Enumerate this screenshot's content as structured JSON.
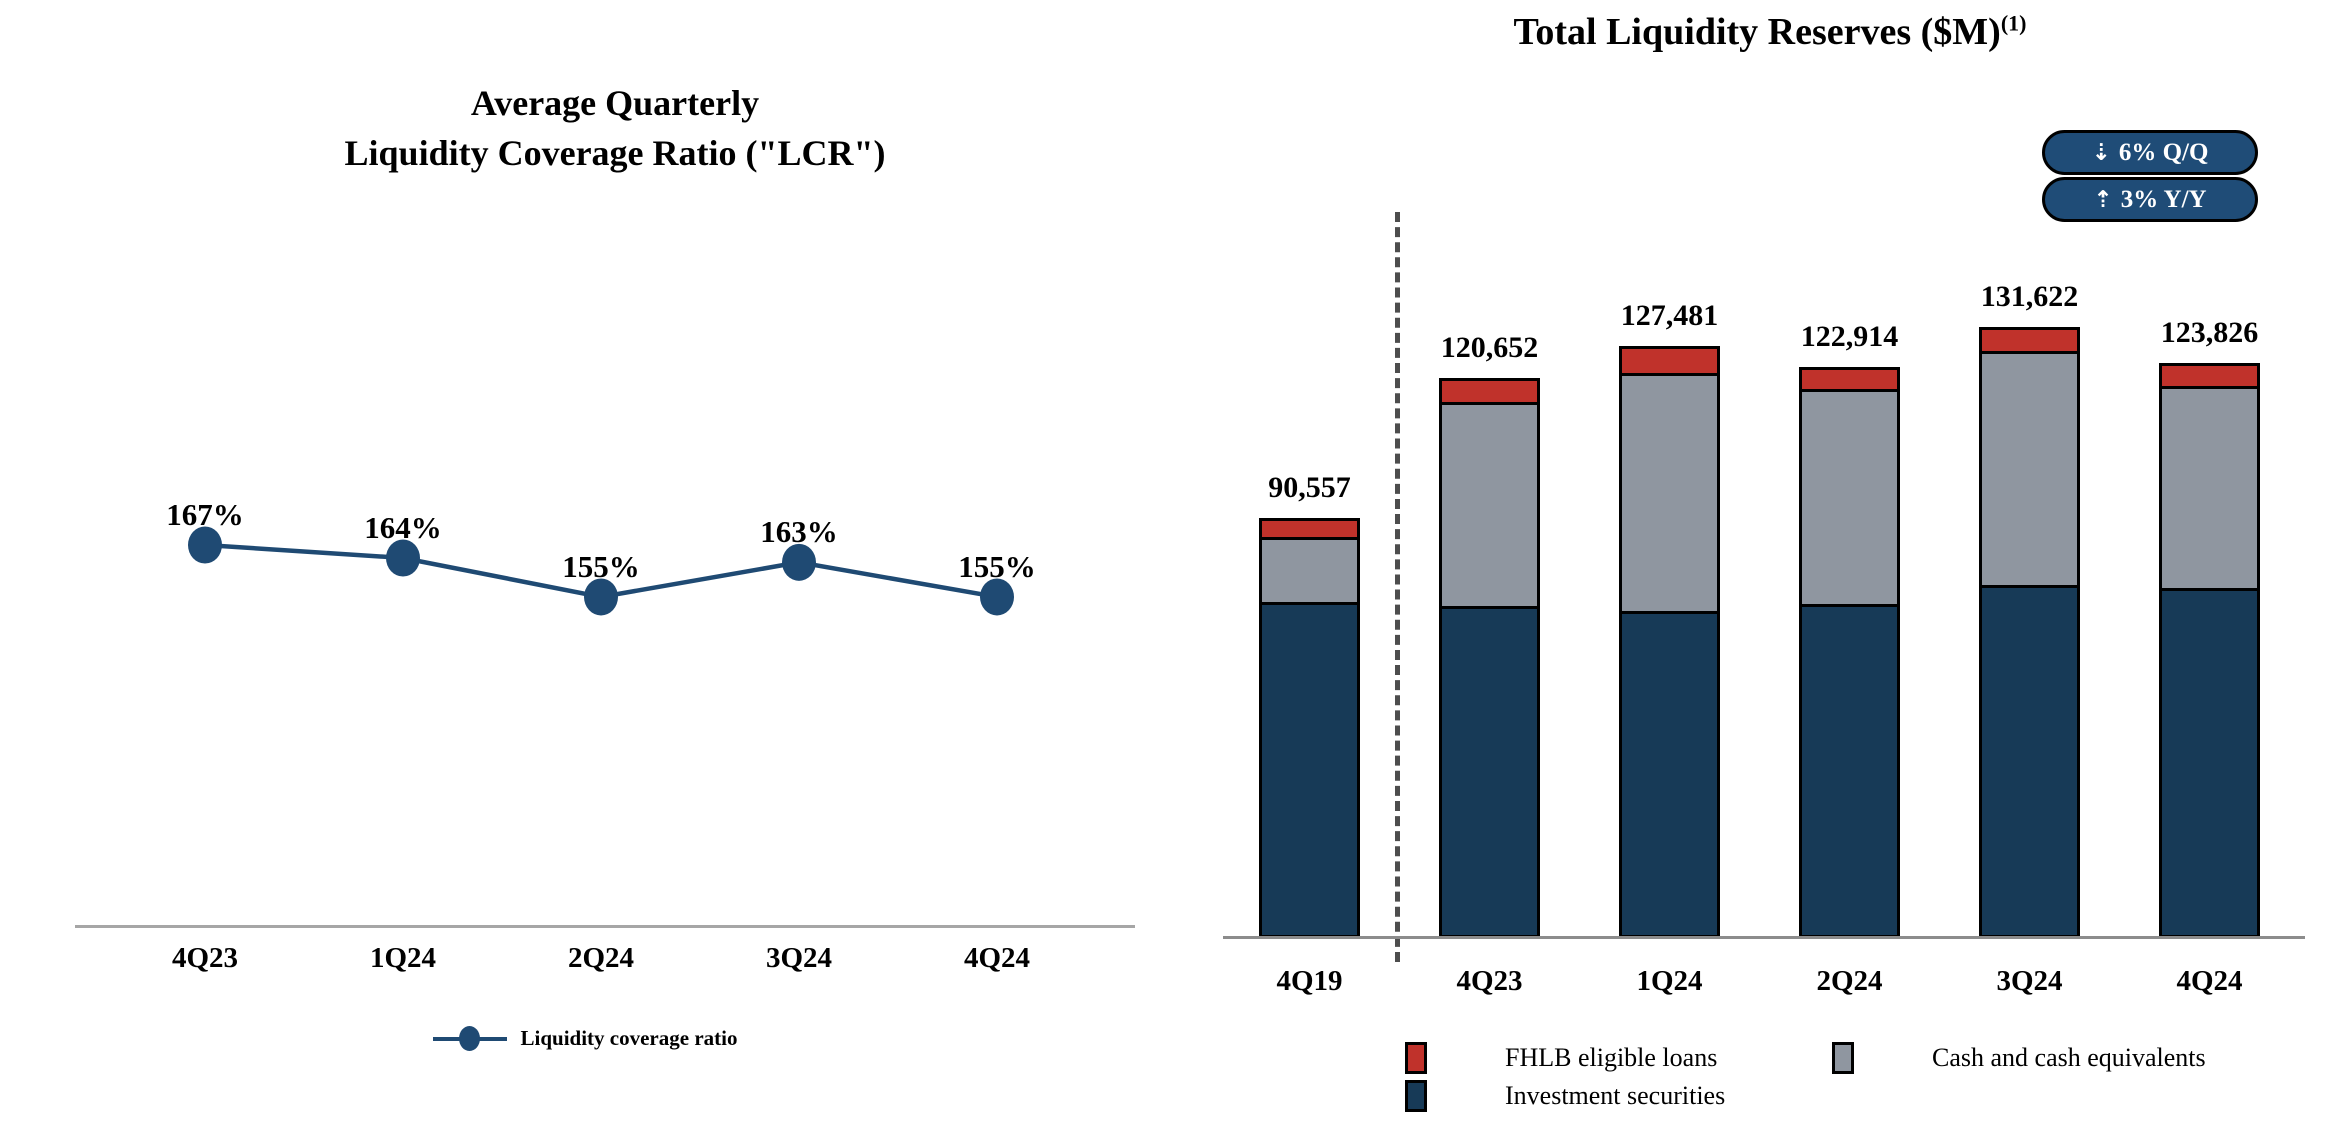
{
  "left_chart": {
    "title_line1": "Average Quarterly",
    "title_line2": "Liquidity Coverage Ratio (\"LCR\")",
    "legend_label": "Liquidity coverage ratio"
  },
  "right_chart": {
    "title": "Total Liquidity Reserves ($M)",
    "title_superscript": "(1)",
    "badges": [
      {
        "arrow": "⇣",
        "label": "6% Q/Q"
      },
      {
        "arrow": "⇡",
        "label": "3% Y/Y"
      }
    ],
    "legend": [
      {
        "label": "FHLB eligible loans",
        "color": "#c0322b"
      },
      {
        "label": "Cash and cash equivalents",
        "color": "#8f96a0"
      },
      {
        "label": "Investment securities",
        "color": "#173a57"
      }
    ]
  },
  "chart_data": [
    {
      "type": "line",
      "title": "Average Quarterly Liquidity Coverage Ratio (\"LCR\")",
      "series_name": "Liquidity coverage ratio",
      "categories": [
        "4Q23",
        "1Q24",
        "2Q24",
        "3Q24",
        "4Q24"
      ],
      "values": [
        167,
        164,
        155,
        163,
        155
      ],
      "point_labels": [
        "167%",
        "164%",
        "155%",
        "163%",
        "155%"
      ],
      "unit": "%",
      "line_color": "#1f4a73",
      "grid": false,
      "legend_position": "bottom"
    },
    {
      "type": "bar",
      "stacked": true,
      "title": "Total Liquidity Reserves ($M)",
      "footnote_marker": "(1)",
      "categories": [
        "4Q19",
        "4Q23",
        "1Q24",
        "2Q24",
        "3Q24",
        "4Q24"
      ],
      "totals": [
        90557,
        120652,
        127481,
        122914,
        131622,
        123826
      ],
      "total_labels": [
        "90,557",
        "120,652",
        "127,481",
        "122,914",
        "131,622",
        "123,826"
      ],
      "series": [
        {
          "name": "Investment securities",
          "color": "#173a57",
          "values": [
            72500,
            71600,
            70300,
            71700,
            76000,
            75300
          ]
        },
        {
          "name": "Cash and cash equivalents",
          "color": "#8f96a0",
          "values": [
            13900,
            43900,
            51300,
            46400,
            50400,
            43500
          ]
        },
        {
          "name": "FHLB eligible loans",
          "color": "#c0322b",
          "values": [
            4157,
            5152,
            5881,
            4814,
            5222,
            5026
          ]
        }
      ],
      "note": "Stacked segment values estimated from bar heights; totals are labeled on chart",
      "separator_after_category": "4Q19",
      "change_badges": [
        "⇣ 6% Q/Q",
        "⇡ 3% Y/Y"
      ],
      "grid": false,
      "legend_position": "bottom"
    }
  ]
}
